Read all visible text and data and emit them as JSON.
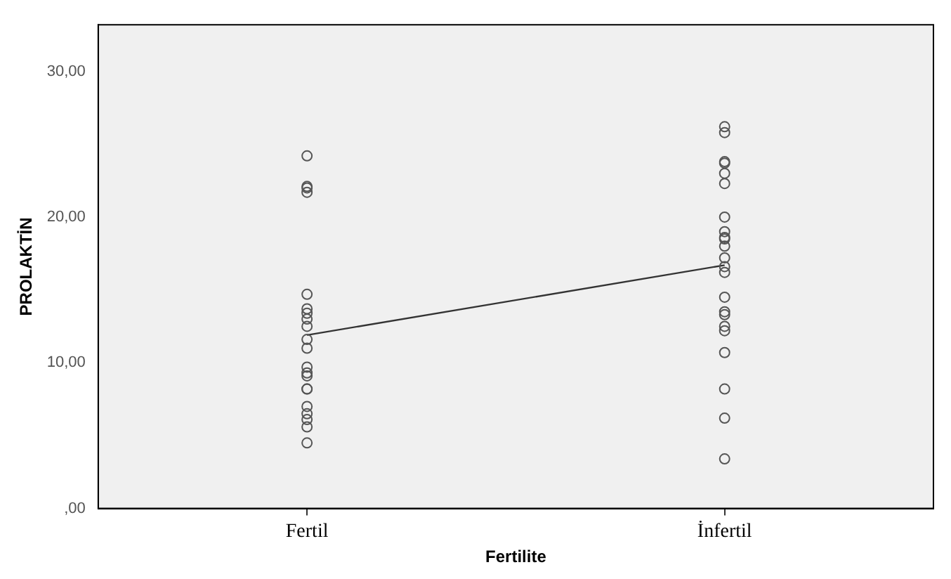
{
  "chart_data": {
    "type": "scatter",
    "xlabel": "Fertilite",
    "ylabel": "PROLAKTİN",
    "categories": [
      "Fertil",
      "İnfertil"
    ],
    "ylim": [
      0,
      33.2
    ],
    "yticks": [
      {
        "value": 0,
        "label": ",00"
      },
      {
        "value": 10,
        "label": "10,00"
      },
      {
        "value": 20,
        "label": "20,00"
      },
      {
        "value": 30,
        "label": "30,00"
      }
    ],
    "grid": false,
    "legend": false,
    "marker": "circle",
    "series": [
      {
        "color": "#555555",
        "x": [
          "Fertil",
          "Fertil",
          "Fertil",
          "Fertil",
          "Fertil",
          "Fertil",
          "Fertil",
          "Fertil",
          "Fertil",
          "Fertil",
          "Fertil",
          "Fertil",
          "Fertil",
          "Fertil",
          "Fertil",
          "Fertil",
          "Fertil",
          "Fertil",
          "Fertil",
          "Fertil",
          "Fertil"
        ],
        "values": [
          24.2,
          22.0,
          21.7,
          14.7,
          13.7,
          13.4,
          13.0,
          12.5,
          11.6,
          11.0,
          9.7,
          9.3,
          9.1,
          8.2,
          8.2,
          7.0,
          6.5,
          6.1,
          5.6,
          4.5,
          22.1
        ]
      },
      {
        "color": "#555555",
        "x": [
          "İnfertil",
          "İnfertil",
          "İnfertil",
          "İnfertil",
          "İnfertil",
          "İnfertil",
          "İnfertil",
          "İnfertil",
          "İnfertil",
          "İnfertil",
          "İnfertil",
          "İnfertil",
          "İnfertil",
          "İnfertil",
          "İnfertil",
          "İnfertil",
          "İnfertil",
          "İnfertil",
          "İnfertil",
          "İnfertil",
          "İnfertil",
          "İnfertil",
          "İnfertil"
        ],
        "values": [
          26.2,
          25.8,
          23.8,
          23.7,
          23.0,
          22.3,
          20.0,
          19.0,
          18.6,
          18.5,
          18.0,
          17.2,
          16.6,
          16.2,
          14.5,
          13.5,
          13.3,
          12.5,
          12.2,
          10.7,
          8.2,
          6.2,
          3.4
        ]
      },
      {
        "type": "line",
        "color": "#333333",
        "marker": "none",
        "line_style": "solid",
        "x": [
          "Fertil",
          "İnfertil"
        ],
        "values": [
          11.9,
          16.7
        ]
      }
    ]
  }
}
